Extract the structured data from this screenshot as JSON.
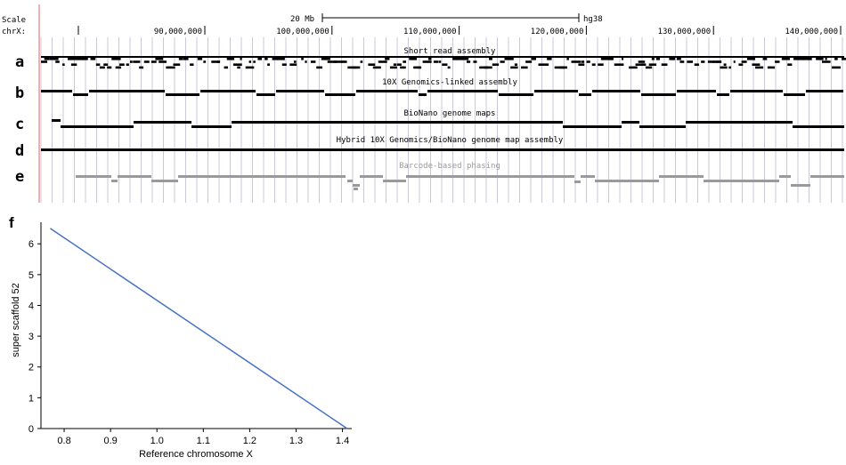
{
  "browser": {
    "scale_label": "Scale",
    "chrom_label": "chrX:",
    "scale_bar_text": "20 Mb",
    "assembly": "hg38",
    "axis_ticks": [
      {
        "pos_mb": 90,
        "label": "90,000,000"
      },
      {
        "pos_mb": 100,
        "label": "100,000,000"
      },
      {
        "pos_mb": 110,
        "label": "110,000,000"
      },
      {
        "pos_mb": 120,
        "label": "120,000,000"
      },
      {
        "pos_mb": 130,
        "label": "130,000,000"
      },
      {
        "pos_mb": 140,
        "label": "140,000,000"
      }
    ],
    "tracks": [
      {
        "letter": "a",
        "title": "Short read assembly"
      },
      {
        "letter": "b",
        "title": "10X Genomics-linked assembly"
      },
      {
        "letter": "c",
        "title": "BioNano genome maps"
      },
      {
        "letter": "d",
        "title": "Hybrid 10X Genomics/BioNano genome map assembly"
      },
      {
        "letter": "e",
        "title": "Barcode-based phasing"
      }
    ],
    "colors": {
      "dark": "#000000",
      "phasing": "#9a9a9a",
      "grid": "#c8c8d8",
      "accent_line": "#e06060"
    }
  },
  "chart_data": {
    "panel_letter": "f",
    "type": "line",
    "xlabel": "Reference chromosome X",
    "ylabel": "super scaffold 52",
    "xlim": [
      0.75,
      1.42
    ],
    "ylim": [
      0,
      6.7
    ],
    "xticks": [
      "0.8",
      "0.9",
      "1.0",
      "1.1",
      "1.2",
      "1.3",
      "1.4"
    ],
    "yticks": [
      "0",
      "1",
      "2",
      "3",
      "4",
      "5",
      "6"
    ],
    "series": [
      {
        "x": [
          0.77,
          1.41
        ],
        "y": [
          6.5,
          0.0
        ],
        "color": "#4a72c4"
      }
    ]
  }
}
